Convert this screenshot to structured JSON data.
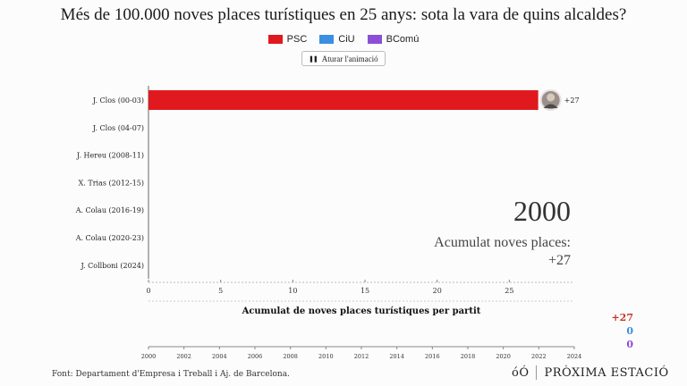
{
  "title": "Més de 100.000 noves places turístiques en 25 anys: sota la vara de quins alcaldes?",
  "legend": [
    {
      "label": "PSC",
      "color": "#e0191e"
    },
    {
      "label": "CiU",
      "color": "#3b8fe0"
    },
    {
      "label": "BComú",
      "color": "#8b4fd6"
    }
  ],
  "controls": {
    "pause_label": "Aturar l'animació"
  },
  "year": "2000",
  "accum_label": "Acumulat noves places:",
  "accum_value": "+27",
  "subtitle": "Acumulat de noves places turístiques per partit",
  "totals": [
    {
      "party": "PSC",
      "value": "+27",
      "color": "#c0392b"
    },
    {
      "party": "CiU",
      "value": "0",
      "color": "#3b8fe0"
    },
    {
      "party": "BComú",
      "value": "0",
      "color": "#8b4fd6"
    }
  ],
  "source": "Font: Departament d'Empresa i Treball i Aj. de Barcelona.",
  "logo": {
    "mark": "óÓ",
    "name": "PRÒXIMA ESTACIÓ"
  },
  "chart_data": [
    {
      "type": "bar",
      "orientation": "horizontal",
      "categories": [
        "J. Clos (00-03)",
        "J. Clos (04-07)",
        "J. Hereu (2008-11)",
        "X. Trias (2012-15)",
        "A. Colau (2016-19)",
        "A. Colau (2020-23)",
        "J. Collboni (2024)"
      ],
      "values": [
        27,
        0,
        0,
        0,
        0,
        0,
        0
      ],
      "colors": [
        "#e0191e",
        "#e0191e",
        "#e0191e",
        "#3b8fe0",
        "#8b4fd6",
        "#8b4fd6",
        "#e0191e"
      ],
      "value_labels": [
        "+27",
        "",
        "",
        "",
        "",
        "",
        ""
      ],
      "xticks": [
        0,
        5,
        10,
        15,
        20,
        25
      ],
      "xlim": [
        0,
        29.5
      ]
    },
    {
      "type": "line",
      "title": "Acumulat de noves places turístiques per partit",
      "xticks": [
        2000,
        2002,
        2004,
        2006,
        2008,
        2010,
        2012,
        2014,
        2016,
        2018,
        2020,
        2022,
        2024
      ],
      "xlim": [
        2000,
        2024
      ],
      "series": []
    }
  ]
}
